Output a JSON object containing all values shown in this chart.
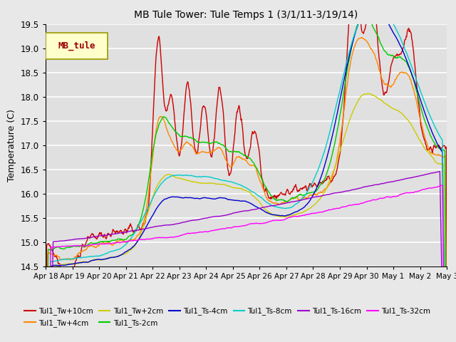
{
  "title": "MB Tule Tower: Tule Temps 1 (3/1/11-3/19/14)",
  "ylabel": "Temperature (C)",
  "ylim": [
    14.5,
    19.5
  ],
  "xlim": [
    0,
    15
  ],
  "xtick_labels": [
    "Apr 18",
    "Apr 19",
    "Apr 20",
    "Apr 21",
    "Apr 22",
    "Apr 23",
    "Apr 24",
    "Apr 25",
    "Apr 26",
    "Apr 27",
    "Apr 28",
    "Apr 29",
    "Apr 30",
    "May 1",
    "May 2",
    "May 3"
  ],
  "ytick_vals": [
    14.5,
    15.0,
    15.5,
    16.0,
    16.5,
    17.0,
    17.5,
    18.0,
    18.5,
    19.0,
    19.5
  ],
  "legend_box_label": "MB_tule",
  "series": [
    {
      "label": "Tul1_Tw+10cm",
      "color": "#cc0000"
    },
    {
      "label": "Tul1_Tw+4cm",
      "color": "#ff8800"
    },
    {
      "label": "Tul1_Tw+2cm",
      "color": "#cccc00"
    },
    {
      "label": "Tul1_Ts-2cm",
      "color": "#00cc00"
    },
    {
      "label": "Tul1_Ts-4cm",
      "color": "#0000cc"
    },
    {
      "label": "Tul1_Ts-8cm",
      "color": "#00cccc"
    },
    {
      "label": "Tul1_Ts-16cm",
      "color": "#9900cc"
    },
    {
      "label": "Tul1_Ts-32cm",
      "color": "#ff00ff"
    }
  ],
  "bg_color": "#e8e8e8",
  "plot_bg_color": "#e0e0e0",
  "grid_color": "#ffffff"
}
